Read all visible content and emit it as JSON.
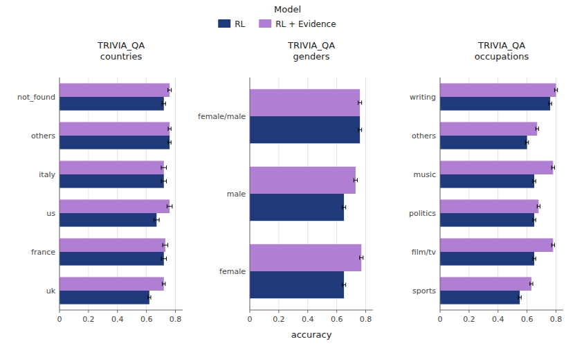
{
  "chart_data": [
    {
      "type": "bar",
      "orientation": "horizontal",
      "title": "TRIVIA_QA\ncountries",
      "legend_title": "Model",
      "categories": [
        "not_found",
        "others",
        "italy",
        "us",
        "france",
        "uk"
      ],
      "series": [
        {
          "name": "RL",
          "color": "#1f3a7a",
          "values": [
            0.72,
            0.76,
            0.72,
            0.67,
            0.72,
            0.62
          ],
          "errors": [
            0.012,
            0.01,
            0.018,
            0.018,
            0.018,
            0.01
          ]
        },
        {
          "name": "RL + Evidence",
          "color": "#b07fd4",
          "values": [
            0.76,
            0.76,
            0.72,
            0.76,
            0.73,
            0.72
          ],
          "errors": [
            0.012,
            0.01,
            0.018,
            0.018,
            0.018,
            0.01
          ]
        }
      ],
      "xlim": [
        0,
        0.85
      ],
      "xticks": [
        0,
        0.2,
        0.4,
        0.6,
        0.8
      ],
      "grid": true
    },
    {
      "type": "bar",
      "orientation": "horizontal",
      "title": "TRIVIA_QA\ngenders",
      "xlabel": "accuracy",
      "categories": [
        "female/male",
        "male",
        "female"
      ],
      "series": [
        {
          "name": "RL",
          "color": "#1f3a7a",
          "values": [
            0.76,
            0.65,
            0.65
          ],
          "errors": [
            0.012,
            0.012,
            0.012
          ]
        },
        {
          "name": "RL + Evidence",
          "color": "#b07fd4",
          "values": [
            0.76,
            0.73,
            0.77
          ],
          "errors": [
            0.012,
            0.012,
            0.012
          ]
        }
      ],
      "xlim": [
        0,
        0.85
      ],
      "xticks": [
        0,
        0.2,
        0.4,
        0.6,
        0.8
      ],
      "grid": true
    },
    {
      "type": "bar",
      "orientation": "horizontal",
      "title": "TRIVIA_QA\noccupations",
      "categories": [
        "writing",
        "others",
        "music",
        "politics",
        "film/tv",
        "sports"
      ],
      "series": [
        {
          "name": "RL",
          "color": "#1f3a7a",
          "values": [
            0.76,
            0.6,
            0.65,
            0.65,
            0.65,
            0.55
          ],
          "errors": [
            0.01,
            0.01,
            0.01,
            0.01,
            0.01,
            0.01
          ]
        },
        {
          "name": "RL + Evidence",
          "color": "#b07fd4",
          "values": [
            0.8,
            0.67,
            0.78,
            0.68,
            0.78,
            0.63
          ],
          "errors": [
            0.01,
            0.01,
            0.01,
            0.01,
            0.01,
            0.01
          ]
        }
      ],
      "xlim": [
        0,
        0.85
      ],
      "xticks": [
        0,
        0.2,
        0.4,
        0.6,
        0.8
      ],
      "grid": true
    }
  ]
}
